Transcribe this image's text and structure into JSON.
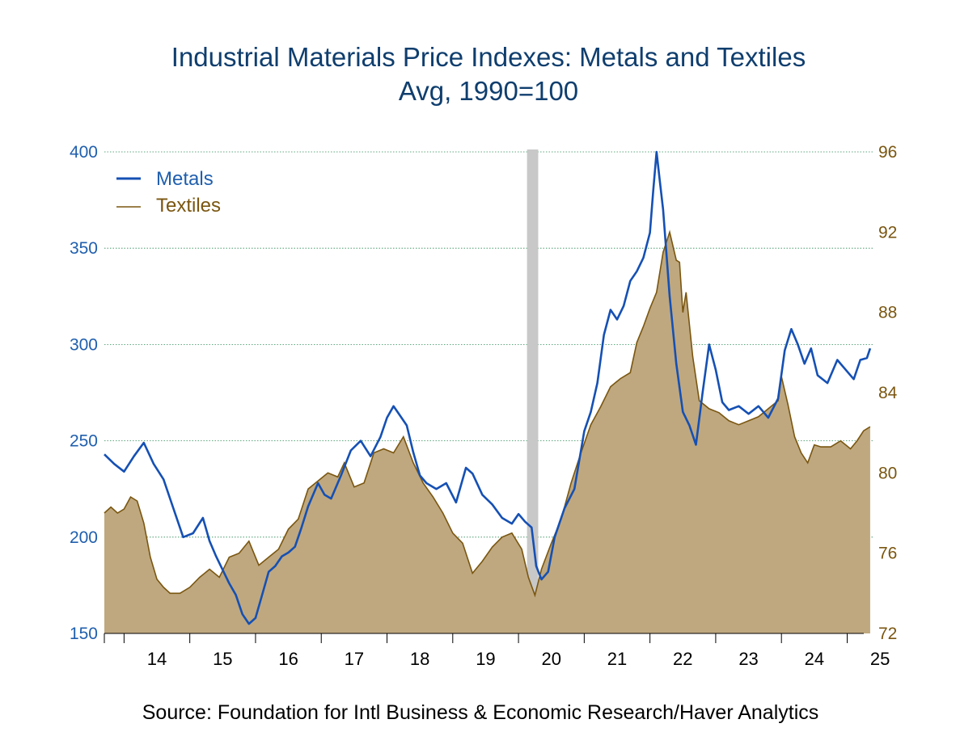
{
  "title": "Industrial Materials Price Indexes: Metals and Textiles",
  "subtitle": "Avg, 1990=100",
  "source": "Source:  Foundation for Intl Business & Economic Research/Haver Analytics",
  "colors": {
    "metals": "#1550b4",
    "textiles_line": "#7a5610",
    "textiles_fill": "#bfa87f",
    "recession": "#c8c8c8",
    "grid": "#2e8b57"
  },
  "chart_data": {
    "type": "line",
    "x_tick_labels": [
      "14",
      "15",
      "16",
      "17",
      "18",
      "19",
      "20",
      "21",
      "22",
      "23",
      "24",
      "25"
    ],
    "x_range": [
      2013.7,
      2025.4
    ],
    "y_left": {
      "range": [
        150,
        400
      ],
      "ticks": [
        150,
        200,
        250,
        300,
        350,
        400
      ]
    },
    "y_right": {
      "range": [
        72,
        96
      ],
      "ticks": [
        72,
        76,
        80,
        84,
        88,
        92,
        96
      ]
    },
    "grid": "horizontal dotted",
    "legend_position": "top-left",
    "recession_band": [
      2020.13,
      2020.3
    ],
    "series": [
      {
        "name": "Metals",
        "axis": "left",
        "style": "line",
        "x": [
          2013.7,
          2013.85,
          2014.0,
          2014.15,
          2014.3,
          2014.45,
          2014.6,
          2014.75,
          2014.9,
          2015.05,
          2015.2,
          2015.3,
          2015.4,
          2015.5,
          2015.6,
          2015.7,
          2015.8,
          2015.9,
          2016.0,
          2016.1,
          2016.2,
          2016.3,
          2016.4,
          2016.5,
          2016.6,
          2016.7,
          2016.8,
          2016.95,
          2017.05,
          2017.15,
          2017.3,
          2017.45,
          2017.6,
          2017.75,
          2017.9,
          2018.0,
          2018.1,
          2018.2,
          2018.3,
          2018.4,
          2018.5,
          2018.6,
          2018.75,
          2018.9,
          2019.05,
          2019.2,
          2019.3,
          2019.45,
          2019.6,
          2019.75,
          2019.9,
          2020.0,
          2020.1,
          2020.2,
          2020.27,
          2020.35,
          2020.45,
          2020.55,
          2020.7,
          2020.85,
          2021.0,
          2021.1,
          2021.2,
          2021.3,
          2021.4,
          2021.5,
          2021.6,
          2021.7,
          2021.8,
          2021.9,
          2022.0,
          2022.05,
          2022.1,
          2022.15,
          2022.2,
          2022.3,
          2022.4,
          2022.5,
          2022.6,
          2022.7,
          2022.8,
          2022.9,
          2023.0,
          2023.1,
          2023.2,
          2023.35,
          2023.5,
          2023.65,
          2023.8,
          2023.95,
          2024.05,
          2024.15,
          2024.25,
          2024.35,
          2024.45,
          2024.55,
          2024.7,
          2024.85,
          2025.0,
          2025.1,
          2025.2,
          2025.3,
          2025.35
        ],
        "values": [
          243,
          238,
          234,
          242,
          249,
          238,
          230,
          215,
          200,
          202,
          210,
          198,
          190,
          183,
          176,
          170,
          160,
          155,
          158,
          170,
          182,
          185,
          190,
          192,
          195,
          205,
          216,
          228,
          222,
          220,
          232,
          245,
          250,
          242,
          252,
          262,
          268,
          263,
          258,
          244,
          232,
          228,
          225,
          228,
          218,
          236,
          233,
          222,
          217,
          210,
          207,
          212,
          208,
          205,
          185,
          178,
          182,
          200,
          215,
          225,
          255,
          265,
          280,
          305,
          318,
          313,
          320,
          333,
          338,
          345,
          358,
          380,
          400,
          385,
          370,
          325,
          290,
          265,
          258,
          248,
          275,
          300,
          287,
          270,
          266,
          268,
          264,
          268,
          262,
          272,
          297,
          308,
          300,
          290,
          298,
          284,
          280,
          292,
          286,
          282,
          292,
          293,
          298
        ]
      },
      {
        "name": "Textiles",
        "axis": "right",
        "style": "filled area",
        "x": [
          2013.7,
          2013.8,
          2013.9,
          2014.0,
          2014.1,
          2014.2,
          2014.3,
          2014.4,
          2014.5,
          2014.6,
          2014.7,
          2014.85,
          2015.0,
          2015.15,
          2015.3,
          2015.45,
          2015.6,
          2015.75,
          2015.9,
          2016.05,
          2016.2,
          2016.35,
          2016.5,
          2016.65,
          2016.8,
          2016.95,
          2017.1,
          2017.25,
          2017.35,
          2017.5,
          2017.65,
          2017.8,
          2017.95,
          2018.1,
          2018.25,
          2018.4,
          2018.55,
          2018.7,
          2018.85,
          2019.0,
          2019.15,
          2019.3,
          2019.45,
          2019.6,
          2019.75,
          2019.9,
          2020.05,
          2020.15,
          2020.25,
          2020.35,
          2020.5,
          2020.65,
          2020.8,
          2020.95,
          2021.1,
          2021.25,
          2021.4,
          2021.55,
          2021.7,
          2021.8,
          2021.9,
          2022.0,
          2022.1,
          2022.2,
          2022.3,
          2022.4,
          2022.45,
          2022.5,
          2022.55,
          2022.65,
          2022.75,
          2022.9,
          2023.05,
          2023.2,
          2023.35,
          2023.5,
          2023.65,
          2023.8,
          2023.95,
          2024.0,
          2024.1,
          2024.2,
          2024.3,
          2024.4,
          2024.5,
          2024.6,
          2024.75,
          2024.9,
          2025.05,
          2025.15,
          2025.25,
          2025.35
        ],
        "values": [
          78,
          78.3,
          78,
          78.2,
          78.8,
          78.6,
          77.5,
          75.8,
          74.7,
          74.3,
          74,
          74,
          74.3,
          74.8,
          75.2,
          74.8,
          75.8,
          76,
          76.6,
          75.4,
          75.8,
          76.2,
          77.2,
          77.7,
          79.2,
          79.6,
          80,
          79.8,
          80.5,
          79.3,
          79.5,
          81,
          81.2,
          81,
          81.8,
          80.5,
          79.5,
          78.8,
          78,
          77,
          76.5,
          75,
          75.6,
          76.3,
          76.8,
          77,
          76.2,
          74.8,
          73.9,
          75.2,
          76.5,
          77.7,
          79.5,
          81,
          82.4,
          83.3,
          84.3,
          84.7,
          85,
          86.5,
          87.3,
          88.2,
          89,
          91,
          92,
          90.6,
          90.5,
          88,
          89,
          85.8,
          83.6,
          83.2,
          83,
          82.6,
          82.4,
          82.6,
          82.8,
          83.2,
          83.6,
          84.8,
          83.4,
          81.8,
          81,
          80.5,
          81.4,
          81.3,
          81.3,
          81.6,
          81.2,
          81.6,
          82.1,
          82.3
        ]
      }
    ]
  }
}
